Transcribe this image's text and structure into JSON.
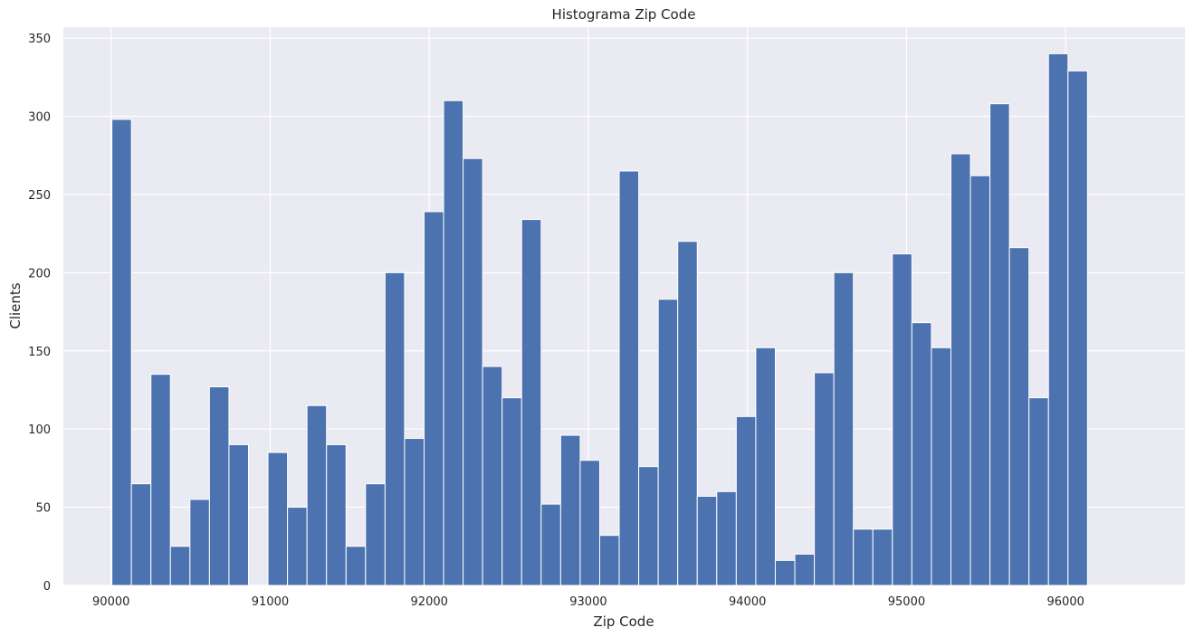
{
  "chart_data": {
    "type": "bar",
    "title": "Histograma Zip Code",
    "xlabel": "Zip Code",
    "ylabel": "Clients",
    "bins": {
      "start": 90005,
      "bin_width": 122.65,
      "counts": [
        298,
        65,
        135,
        25,
        55,
        127,
        90,
        0,
        85,
        50,
        115,
        90,
        25,
        65,
        200,
        94,
        239,
        310,
        273,
        140,
        120,
        234,
        52,
        96,
        80,
        32,
        265,
        76,
        183,
        220,
        57,
        60,
        108,
        152,
        16,
        20,
        136,
        200,
        36,
        36,
        212,
        168,
        152,
        276,
        262,
        308,
        216,
        120,
        340,
        329
      ]
    },
    "xlim": [
      89700,
      96750
    ],
    "ylim": [
      0,
      357
    ],
    "xticks": [
      90000,
      91000,
      92000,
      93000,
      94000,
      95000,
      96000
    ],
    "yticks": [
      0,
      50,
      100,
      150,
      200,
      250,
      300,
      350
    ],
    "grid": true,
    "bar_color": "#4c72b0",
    "background_color": "#eaeaf2",
    "grid_color": "#ffffff"
  }
}
